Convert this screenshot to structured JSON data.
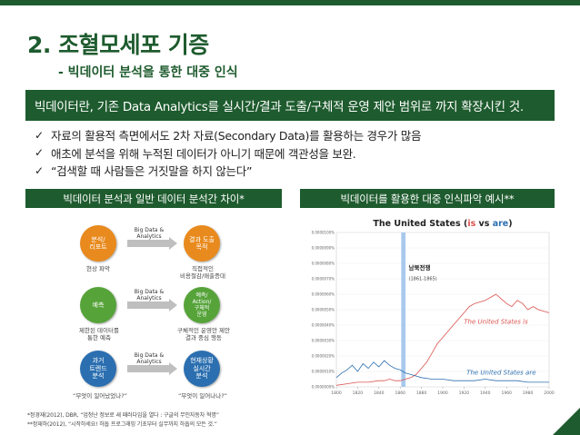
{
  "slide": {
    "title": "2. 조혈모세포 기증",
    "subtitle": "- 빅데이터 분석을 통한 대중 인식",
    "banner": "빅데이터란, 기존 Data Analytics를 실시간/결과 도출/구체적 운영 제안 범위로 까지 확장시킨 것.",
    "bullets": [
      "자료의 활용적 측면에서도 2차 자료(Secondary Data)를 활용하는 경우가 많음",
      "애초에 분석을 위해 누적된 데이터가 아니기 때문에 객관성을 보완.",
      "“검색할 때 사람들은 거짓말을 하지 않는다”"
    ],
    "left_panel_title": "빅데이터 분석과 일반 데이터 분석간 차이*",
    "right_panel_title": "빅데이터를 활용한 대중 인식파악 예시**",
    "footnotes": [
      "*정경재(2012), DBR, “업청난 정보로 새 패러다임을 열다 : 구글의 무인자동차 혁명”",
      "**정재하(2012), “시작하세요! 하둡 프로그래밍 기초부터 실무까지 하둡의 모든 것.”"
    ]
  },
  "diagram": {
    "rows": [
      {
        "left": "분석/\n리포트",
        "arrow": "Big Data &\nAnalytics",
        "right": "결과 도출\n목적",
        "left_cap": "현상 파악",
        "right_cap": "직접적인\n비용절감/매출증대"
      },
      {
        "left": "예측",
        "arrow": "Big Data &\nAnalytics",
        "right": "예측/\nAction/\n구체적\n운영",
        "left_cap": "제한된 데이터를\n통한 예측",
        "right_cap": "구체적인 운영안 제안\n결과 중심 행동"
      },
      {
        "left": "과거\n트렌드\n분석",
        "arrow": "Big Data &\nAnalytics",
        "right": "현재상황\n실시간\n분석",
        "left_cap": "“무엇이 일어났었나?”",
        "right_cap": "“무엇이 일어나나?”"
      }
    ]
  },
  "chart_data": {
    "type": "line",
    "title_parts": [
      "The United States (",
      "is",
      " vs ",
      "are",
      ")"
    ],
    "annotation": "남북전쟁",
    "annotation_sub": "(1861-1865)",
    "x_ticks": [
      1800,
      1820,
      1840,
      1860,
      1880,
      1900,
      1920,
      1940,
      1960,
      1980,
      2000
    ],
    "y_ticks": [
      "0.0000100%",
      "0.0000090%",
      "0.0000080%",
      "0.0000070%",
      "0.0000060%",
      "0.0000050%",
      "0.0000040%",
      "0.0000030%",
      "0.0000020%",
      "0.0000010%",
      "0.0000000%"
    ],
    "xlim": [
      1800,
      2000
    ],
    "ylim": [
      0,
      1e-05
    ],
    "band": [
      1861,
      1865
    ],
    "series": [
      {
        "name": "The United States is",
        "color": "#d9534f",
        "x": [
          1800,
          1810,
          1820,
          1830,
          1840,
          1845,
          1850,
          1855,
          1860,
          1865,
          1870,
          1875,
          1880,
          1885,
          1890,
          1895,
          1900,
          1905,
          1910,
          1915,
          1920,
          1925,
          1930,
          1935,
          1940,
          1945,
          1950,
          1955,
          1960,
          1965,
          1970,
          1975,
          1980,
          1985,
          1990,
          1995,
          2000
        ],
        "y": [
          1e-07,
          2e-07,
          3e-07,
          3e-07,
          4e-07,
          4e-07,
          5e-07,
          4e-07,
          4e-07,
          5e-07,
          6e-07,
          8e-07,
          1.2e-06,
          1.6e-06,
          2.2e-06,
          2.8e-06,
          3.2e-06,
          3.6e-06,
          4e-06,
          4.4e-06,
          4.8e-06,
          5.2e-06,
          5.4e-06,
          5.5e-06,
          5.6e-06,
          5.8e-06,
          6e-06,
          5.7e-06,
          5.4e-06,
          5.2e-06,
          5.6e-06,
          5.4e-06,
          5e-06,
          5.2e-06,
          5e-06,
          4.9e-06,
          4.8e-06
        ]
      },
      {
        "name": "The United States are",
        "color": "#2b6fb0",
        "x": [
          1800,
          1805,
          1810,
          1815,
          1820,
          1825,
          1830,
          1835,
          1840,
          1845,
          1850,
          1855,
          1860,
          1865,
          1870,
          1875,
          1880,
          1890,
          1900,
          1910,
          1920,
          1930,
          1940,
          1950,
          1960,
          1970,
          1980,
          1990,
          2000
        ],
        "y": [
          6e-07,
          9e-07,
          1.1e-06,
          1.4e-06,
          1e-06,
          1.5e-06,
          1.2e-06,
          1.6e-06,
          1.3e-06,
          1.7e-06,
          1.4e-06,
          1.2e-06,
          1.1e-06,
          9e-07,
          8e-07,
          7e-07,
          6e-07,
          5e-07,
          5e-07,
          4e-07,
          4e-07,
          4e-07,
          5e-07,
          4e-07,
          4e-07,
          4e-07,
          3e-07,
          3e-07,
          3e-07
        ]
      }
    ]
  }
}
